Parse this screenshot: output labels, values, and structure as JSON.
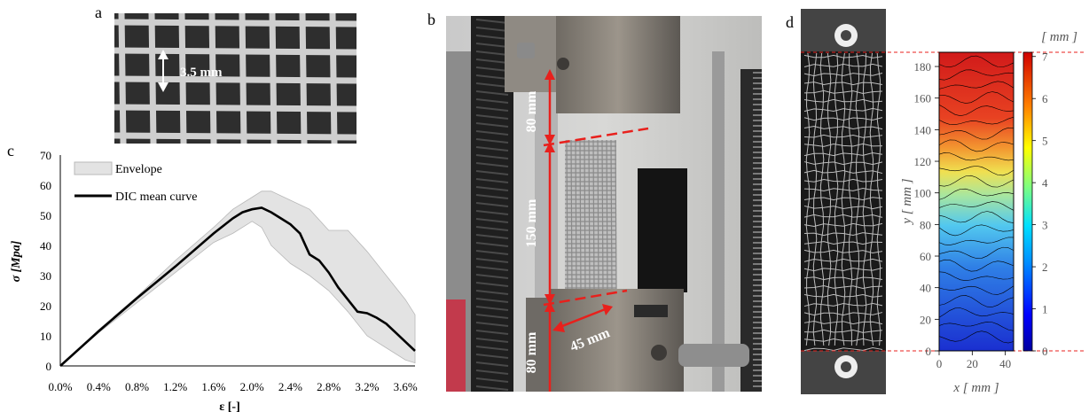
{
  "panels": {
    "a": {
      "label": "a",
      "spacing_label": "3.5 mm"
    },
    "b": {
      "label": "b",
      "dims": [
        "80 mm",
        "150 mm",
        "80 mm",
        "45 mm"
      ]
    },
    "c": {
      "label": "c"
    },
    "d": {
      "label": "d",
      "colorbar_unit": "[ mm ]",
      "colorbar_ticks": [
        "0",
        "1",
        "2",
        "3",
        "4",
        "5",
        "6",
        "7"
      ],
      "y_ticks": [
        "0",
        "20",
        "40",
        "60",
        "80",
        "100",
        "120",
        "140",
        "160",
        "180"
      ],
      "x_ticks": [
        "0",
        "20",
        "40"
      ],
      "ylabel": "y [ mm ]",
      "xlabel": "x [ mm ]"
    }
  },
  "chart_data": {
    "type": "line",
    "title": "",
    "xlabel": "ε [-]",
    "ylabel": "σ [Mpa]",
    "xlim": [
      0,
      0.037
    ],
    "ylim": [
      0,
      70
    ],
    "x_ticks": [
      "0.0%",
      "0.4%",
      "0.8%",
      "1.2%",
      "1.6%",
      "2.0%",
      "2.4%",
      "2.8%",
      "3.2%",
      "3.6%"
    ],
    "y_ticks": [
      "0",
      "10",
      "20",
      "30",
      "40",
      "50",
      "60",
      "70"
    ],
    "legend_position": "top-left",
    "series": [
      {
        "name": "Envelope",
        "type": "area",
        "upper_x": [
          0,
          0.004,
          0.008,
          0.012,
          0.016,
          0.018,
          0.02,
          0.021,
          0.022,
          0.024,
          0.026,
          0.028,
          0.03,
          0.032,
          0.034,
          0.036,
          0.037
        ],
        "upper_y": [
          0,
          12,
          23,
          35,
          46,
          52,
          56,
          58,
          58,
          55,
          52,
          45,
          45,
          38,
          30,
          22,
          17
        ],
        "lower_x": [
          0,
          0.004,
          0.008,
          0.012,
          0.016,
          0.018,
          0.02,
          0.021,
          0.022,
          0.024,
          0.026,
          0.028,
          0.03,
          0.032,
          0.034,
          0.036,
          0.037
        ],
        "lower_y": [
          0,
          11,
          21,
          31,
          41,
          44,
          48,
          46,
          40,
          34,
          30,
          25,
          18,
          10,
          6,
          2,
          1
        ]
      },
      {
        "name": "DIC mean curve",
        "type": "line",
        "x": [
          0,
          0.004,
          0.008,
          0.012,
          0.016,
          0.018,
          0.019,
          0.02,
          0.021,
          0.022,
          0.023,
          0.024,
          0.025,
          0.026,
          0.027,
          0.028,
          0.029,
          0.03,
          0.031,
          0.032,
          0.033,
          0.034,
          0.035,
          0.036,
          0.037
        ],
        "y": [
          0,
          11.5,
          22.5,
          33,
          44,
          49,
          51,
          52,
          52.5,
          51,
          49,
          47,
          44,
          37,
          35,
          31,
          26,
          22,
          18,
          17.5,
          16,
          14,
          11,
          8,
          5
        ]
      }
    ]
  },
  "colors": {
    "envelope_fill": "#e3e3e3",
    "envelope_edge": "#b8b8b8",
    "mean_curve": "#000000",
    "annotation_red": "#e8201c",
    "mesh_bg": "#3f3f3f",
    "mesh_yarn": "#d4d4d4"
  }
}
